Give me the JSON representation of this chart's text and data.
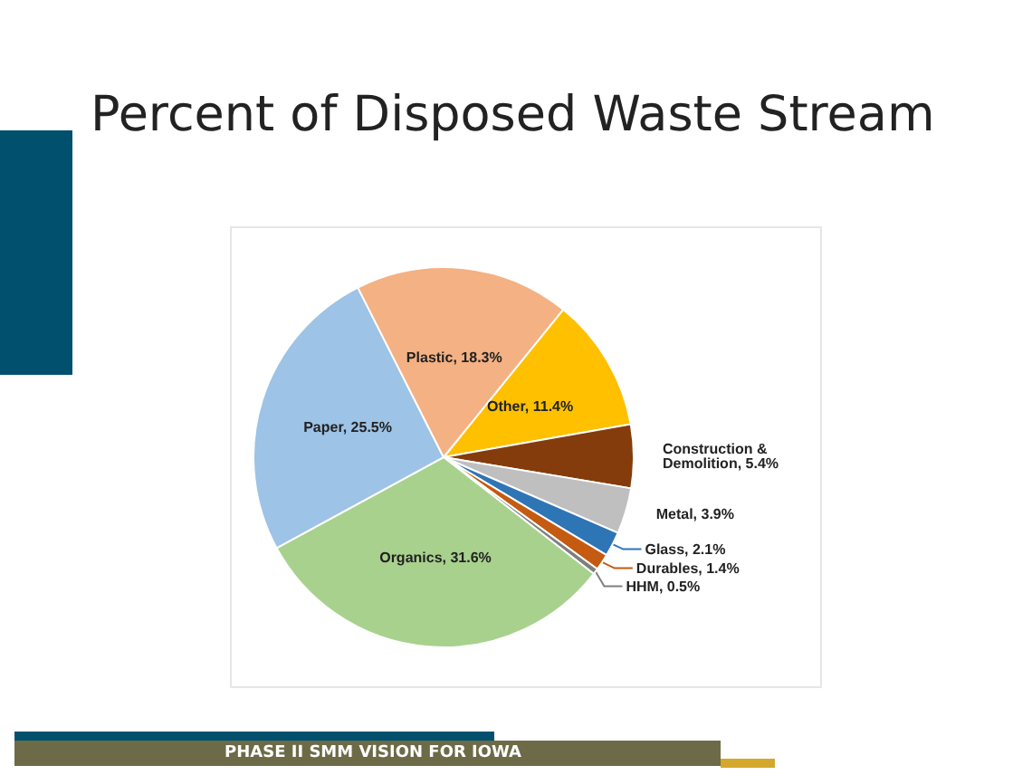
{
  "chart_data": {
    "type": "pie",
    "title": "Percent of Disposed Waste Stream",
    "categories": [
      "Other",
      "Construction & Demolition",
      "Metal",
      "Glass",
      "Durables",
      "HHM",
      "Organics",
      "Paper",
      "Plastic"
    ],
    "values": [
      11.4,
      5.4,
      3.9,
      2.1,
      1.4,
      0.5,
      31.6,
      25.5,
      18.3
    ],
    "value_labels": [
      "11.4%",
      "5.4%",
      "3.9%",
      "2.1%",
      "1.4%",
      "0.5%",
      "31.6%",
      "25.5%",
      "18.3%"
    ],
    "colors": [
      "#ffc000",
      "#843c0c",
      "#bfbfbf",
      "#2e75b6",
      "#c55a11",
      "#7f7f7f",
      "#a9d18e",
      "#9dc3e6",
      "#f4b183"
    ],
    "legend": false,
    "annotations": [
      "PHASE II SMM VISION FOR IOWA"
    ]
  }
}
